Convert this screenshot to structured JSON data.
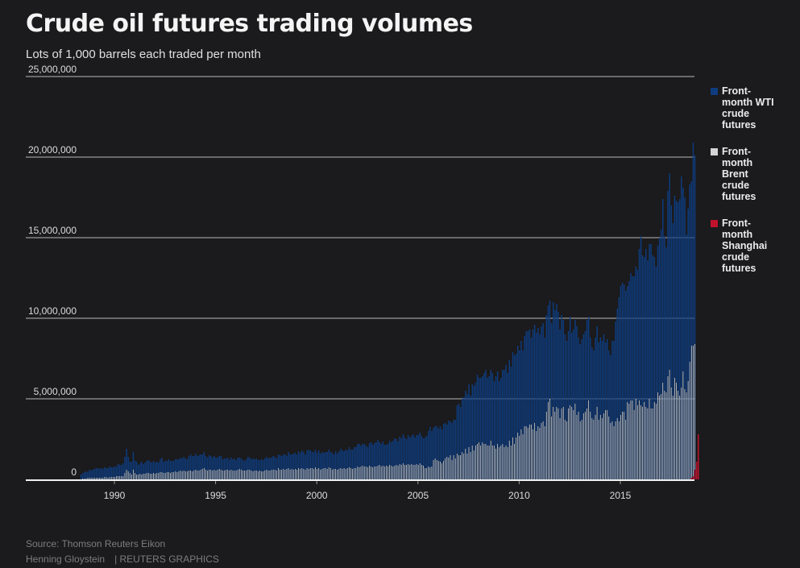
{
  "title": "Crude oil futures trading volumes",
  "subtitle": "Lots of 1,000 barrels each traded per month",
  "source": "Source: Thomson Reuters Eikon",
  "author": "Henning Gloystein",
  "brand": "| REUTERS GRAPHICS",
  "colors": {
    "wti": "#0e3c7e",
    "brent": "#d4d4d4",
    "shanghai": "#c0122c",
    "grid": "#6a6a6a",
    "baseline": "#f0f0f0",
    "background": "#1b1a1c"
  },
  "chart_data": {
    "type": "bar",
    "stacked": true,
    "title": "Crude oil futures trading volumes",
    "subtitle": "Lots of 1,000 barrels each traded per month",
    "xlabel": "",
    "ylabel": "",
    "ylim": [
      0,
      25000000
    ],
    "yticks": [
      0,
      5000000,
      10000000,
      15000000,
      20000000,
      25000000
    ],
    "ytick_labels": [
      "0",
      "5,000,000",
      "10,000,000",
      "15,000,000",
      "20,000,000",
      "25,000,000"
    ],
    "xticks": [
      1990,
      1995,
      2000,
      2005,
      2010,
      2015
    ],
    "xtick_labels": [
      "1990",
      "1995",
      "2000",
      "2005",
      "2010",
      "2015"
    ],
    "xlim": [
      1985.6,
      2018.7
    ],
    "grid": true,
    "legend_position": "right",
    "start_month": "1988-06",
    "units": "millions of lots per month",
    "series": [
      {
        "name": "Front-month Brent crude futures",
        "key": "brent",
        "values_by_year": {
          "1988": [
            0,
            0,
            0,
            0,
            0,
            0,
            0.05,
            0.05,
            0.05,
            0.1,
            0.1,
            0.1
          ],
          "1989": [
            0.1,
            0.1,
            0.1,
            0.1,
            0.1,
            0.1,
            0.1,
            0.15,
            0.15,
            0.1,
            0.15,
            0.15
          ],
          "1990": [
            0.15,
            0.15,
            0.2,
            0.2,
            0.2,
            0.2,
            0.2,
            0.4,
            0.6,
            0.5,
            0.4,
            0.3
          ],
          "1991": [
            0.6,
            0.4,
            0.3,
            0.3,
            0.35,
            0.3,
            0.35,
            0.35,
            0.4,
            0.4,
            0.35,
            0.35
          ],
          "1992": [
            0.4,
            0.35,
            0.4,
            0.4,
            0.45,
            0.45,
            0.4,
            0.4,
            0.45,
            0.45,
            0.4,
            0.45
          ],
          "1993": [
            0.45,
            0.5,
            0.45,
            0.5,
            0.55,
            0.5,
            0.55,
            0.5,
            0.5,
            0.55,
            0.55,
            0.5
          ],
          "1994": [
            0.55,
            0.6,
            0.55,
            0.55,
            0.6,
            0.65,
            0.7,
            0.6,
            0.55,
            0.6,
            0.6,
            0.55
          ],
          "1995": [
            0.6,
            0.55,
            0.6,
            0.65,
            0.6,
            0.55,
            0.55,
            0.6,
            0.6,
            0.55,
            0.6,
            0.55
          ],
          "1996": [
            0.55,
            0.55,
            0.6,
            0.65,
            0.6,
            0.55,
            0.55,
            0.55,
            0.6,
            0.6,
            0.55,
            0.5
          ],
          "1997": [
            0.55,
            0.55,
            0.5,
            0.55,
            0.5,
            0.5,
            0.55,
            0.6,
            0.55,
            0.55,
            0.6,
            0.6
          ],
          "1998": [
            0.6,
            0.55,
            0.7,
            0.6,
            0.6,
            0.65,
            0.6,
            0.65,
            0.7,
            0.6,
            0.65,
            0.6
          ],
          "1999": [
            0.65,
            0.6,
            0.7,
            0.65,
            0.7,
            0.65,
            0.6,
            0.7,
            0.65,
            0.7,
            0.7,
            0.65
          ],
          "2000": [
            0.75,
            0.65,
            0.7,
            0.6,
            0.65,
            0.7,
            0.7,
            0.65,
            0.75,
            0.7,
            0.6,
            0.65
          ],
          "2001": [
            0.65,
            0.6,
            0.65,
            0.7,
            0.65,
            0.7,
            0.65,
            0.7,
            0.75,
            0.7,
            0.65,
            0.7
          ],
          "2002": [
            0.7,
            0.8,
            0.75,
            0.8,
            0.85,
            0.8,
            0.8,
            0.75,
            0.85,
            0.8,
            0.75,
            0.8
          ],
          "2003": [
            0.8,
            0.85,
            0.9,
            0.8,
            0.85,
            0.8,
            0.85,
            0.8,
            0.9,
            0.85,
            0.8,
            0.85
          ],
          "2004": [
            0.9,
            0.85,
            0.95,
            0.9,
            1.0,
            0.9,
            0.9,
            0.95,
            0.9,
            0.95,
            0.9,
            0.9
          ],
          "2005": [
            0.95,
            0.9,
            1.0,
            0.9,
            0.85,
            0.7,
            0.7,
            0.8,
            0.75,
            0.8,
            1.2,
            1.3
          ],
          "2006": [
            1.2,
            1.15,
            1.1,
            1.0,
            1.15,
            1.3,
            1.4,
            1.35,
            1.5,
            1.2,
            1.5,
            1.3
          ],
          "2007": [
            1.6,
            1.5,
            1.5,
            1.7,
            1.6,
            1.9,
            1.6,
            2.0,
            1.7,
            2.1,
            1.8,
            2.1
          ],
          "2008": [
            2.2,
            2.3,
            2.1,
            2.3,
            2.2,
            2.2,
            2.1,
            2.1,
            2.4,
            2.1,
            2.1,
            1.9
          ],
          "2009": [
            2.2,
            2.0,
            2.1,
            2.2,
            2.0,
            2.1,
            2.0,
            2.4,
            2.1,
            2.6,
            2.2,
            2.6
          ],
          "2010": [
            2.9,
            2.7,
            3.1,
            2.8,
            3.3,
            3.3,
            3.2,
            3.4,
            3.4,
            3.1,
            3.5,
            3.0
          ],
          "2011": [
            3.3,
            3.2,
            3.5,
            3.6,
            3.3,
            4.2,
            4.8,
            5.0,
            3.9,
            4.5,
            4.2,
            4.5
          ],
          "2012": [
            4.4,
            3.8,
            4.4,
            4.5,
            3.7,
            3.6,
            4.4,
            4.6,
            4.5,
            4.3,
            4.7,
            4.0
          ],
          "2013": [
            4.2,
            3.6,
            3.7,
            4.1,
            4.2,
            4.4,
            4.9,
            4.2,
            3.8,
            3.7,
            4.0,
            4.5
          ],
          "2014": [
            3.7,
            4.0,
            3.8,
            4.1,
            4.3,
            4.3,
            3.9,
            3.5,
            3.6,
            3.3,
            3.6,
            3.8
          ],
          "2015": [
            3.6,
            4.0,
            4.2,
            4.2,
            3.7,
            4.8,
            4.7,
            4.9,
            4.9,
            4.3,
            5.0,
            4.6
          ],
          "2016": [
            4.9,
            4.6,
            4.5,
            4.8,
            4.5,
            4.4,
            5.0,
            4.4,
            4.4,
            4.8,
            4.7,
            5.4
          ],
          "2017": [
            5.2,
            5.3,
            6.0,
            5.5,
            5.4,
            6.4,
            6.8,
            5.7,
            5.2,
            6.3,
            6.0,
            5.5
          ],
          "2018": [
            5.2,
            5.7,
            6.7,
            5.6,
            5.4,
            6.1,
            7.3,
            8.3,
            8.3,
            8.4,
            0,
            0
          ]
        }
      },
      {
        "name": "Front-month WTI crude futures",
        "key": "wti",
        "values_by_year": {
          "1988": [
            0,
            0,
            0,
            0,
            0,
            0.3,
            0.35,
            0.4,
            0.45,
            0.35,
            0.5,
            0.45
          ],
          "1989": [
            0.5,
            0.55,
            0.6,
            0.6,
            0.55,
            0.6,
            0.55,
            0.6,
            0.55,
            0.6,
            0.65,
            0.6
          ],
          "1990": [
            0.6,
            0.65,
            0.6,
            0.75,
            0.7,
            0.7,
            0.8,
            1.0,
            1.3,
            0.9,
            0.7,
            0.8
          ],
          "1991": [
            1.1,
            0.75,
            0.8,
            0.6,
            0.65,
            0.8,
            0.6,
            0.7,
            0.75,
            0.8,
            0.75,
            0.7
          ],
          "1992": [
            0.75,
            0.7,
            0.7,
            0.65,
            0.8,
            0.9,
            0.7,
            0.75,
            0.7,
            0.8,
            0.75,
            0.7
          ],
          "1993": [
            0.7,
            0.75,
            0.8,
            0.75,
            0.8,
            0.8,
            0.85,
            0.8,
            0.75,
            0.9,
            1.0,
            0.95
          ],
          "1994": [
            0.9,
            1.0,
            0.9,
            0.95,
            0.95,
            0.9,
            1.0,
            0.85,
            0.8,
            0.9,
            0.85,
            0.8
          ],
          "1995": [
            0.85,
            0.8,
            0.75,
            0.8,
            0.85,
            0.7,
            0.75,
            0.7,
            0.75,
            0.65,
            0.75,
            0.7
          ],
          "1996": [
            0.75,
            0.65,
            0.75,
            0.7,
            0.7,
            0.65,
            0.6,
            0.7,
            0.8,
            0.75,
            0.7,
            0.8
          ],
          "1997": [
            0.7,
            0.75,
            0.7,
            0.65,
            0.75,
            0.7,
            0.75,
            0.8,
            0.75,
            0.8,
            0.75,
            0.85
          ],
          "1998": [
            0.8,
            0.75,
            0.85,
            0.9,
            0.85,
            0.9,
            0.95,
            0.8,
            1.0,
            0.95,
            0.9,
            1.0
          ],
          "1999": [
            1.0,
            0.95,
            1.05,
            1.0,
            1.1,
            1.05,
            0.95,
            1.1,
            1.2,
            1.1,
            1.0,
            1.05
          ],
          "2000": [
            1.1,
            1.0,
            1.1,
            1.0,
            1.05,
            0.95,
            1.0,
            1.05,
            1.1,
            1.0,
            1.05,
            0.9
          ],
          "2001": [
            1.1,
            1.0,
            1.1,
            1.2,
            1.15,
            1.05,
            1.2,
            1.1,
            1.25,
            1.15,
            1.2,
            1.3
          ],
          "2002": [
            1.3,
            1.4,
            1.45,
            1.3,
            1.35,
            1.4,
            1.3,
            1.25,
            1.4,
            1.5,
            1.4,
            1.45
          ],
          "2003": [
            1.5,
            1.6,
            1.4,
            1.4,
            1.5,
            1.35,
            1.3,
            1.4,
            1.5,
            1.45,
            1.6,
            1.7
          ],
          "2004": [
            1.6,
            1.5,
            1.7,
            1.65,
            1.8,
            1.7,
            1.6,
            1.8,
            1.7,
            1.75,
            1.9,
            1.7
          ],
          "2005": [
            1.8,
            1.85,
            1.9,
            1.8,
            1.7,
            1.9,
            2.0,
            2.2,
            2.5,
            2.2,
            2.0,
            2.0
          ],
          "2006": [
            2.1,
            2.0,
            2.2,
            2.1,
            2.3,
            2.2,
            2.0,
            2.3,
            2.1,
            2.3,
            2.2,
            2.4
          ],
          "2007": [
            3.0,
            3.2,
            3.0,
            3.3,
            3.5,
            3.6,
            3.7,
            3.9,
            3.5,
            3.8,
            4.0,
            3.9
          ],
          "2008": [
            4.3,
            4.0,
            4.2,
            4.1,
            4.4,
            4.6,
            4.2,
            4.3,
            4.4,
            4.5,
            4.0,
            4.5
          ],
          "2009": [
            4.5,
            4.1,
            4.2,
            4.6,
            4.8,
            5.0,
            4.6,
            5.0,
            4.9,
            5.3,
            5.5,
            5.2
          ],
          "2010": [
            5.4,
            5.3,
            5.5,
            5.2,
            5.6,
            5.9,
            6.0,
            5.9,
            5.4,
            6.2,
            6.1,
            6.1
          ],
          "2011": [
            6.1,
            5.8,
            6.0,
            6.1,
            5.5,
            6.0,
            6.0,
            6.1,
            5.8,
            6.5,
            6.3,
            6.4
          ],
          "2012": [
            6.0,
            5.5,
            5.8,
            5.4,
            5.3,
            5.0,
            4.8,
            5.5,
            4.6,
            5.0,
            5.2,
            5.5
          ],
          "2013": [
            4.6,
            4.8,
            5.0,
            4.9,
            5.0,
            5.5,
            5.2,
            4.6,
            4.4,
            4.3,
            4.8,
            5.0
          ],
          "2014": [
            4.8,
            4.8,
            4.8,
            4.9,
            4.2,
            4.4,
            4.1,
            4.2,
            5.0,
            5.3,
            6.2,
            6.8
          ],
          "2015": [
            7.7,
            8.0,
            8.0,
            7.9,
            8.0,
            7.2,
            7.6,
            7.9,
            7.7,
            8.3,
            8.2,
            8.4
          ],
          "2016": [
            9.4,
            10.5,
            9.4,
            9.0,
            9.8,
            9.2,
            9.6,
            10.2,
            9.5,
            9.0,
            8.5,
            9.1
          ],
          "2017": [
            9.8,
            10.2,
            11.4,
            9.6,
            9.0,
            11.5,
            12.2,
            11.3,
            10.7,
            11.3,
            11.3,
            11.7
          ],
          "2018": [
            12.2,
            13.1,
            11.4,
            11.9,
            9.8,
            10.7,
            11.0,
            10.2,
            12.6,
            11.7,
            0,
            0
          ]
        }
      },
      {
        "name": "Front-month Shanghai crude futures",
        "key": "shanghai",
        "values_by_year": {
          "2018": [
            0,
            0,
            0,
            0,
            0,
            0,
            0,
            0.1,
            0.2,
            0.6,
            1.1,
            2.8
          ]
        }
      }
    ],
    "legend": [
      {
        "key": "wti",
        "label": "Front-month WTI crude futures"
      },
      {
        "key": "brent",
        "label": "Front-month Brent crude futures"
      },
      {
        "key": "shanghai",
        "label": "Front-month Shanghai crude futures"
      }
    ]
  }
}
